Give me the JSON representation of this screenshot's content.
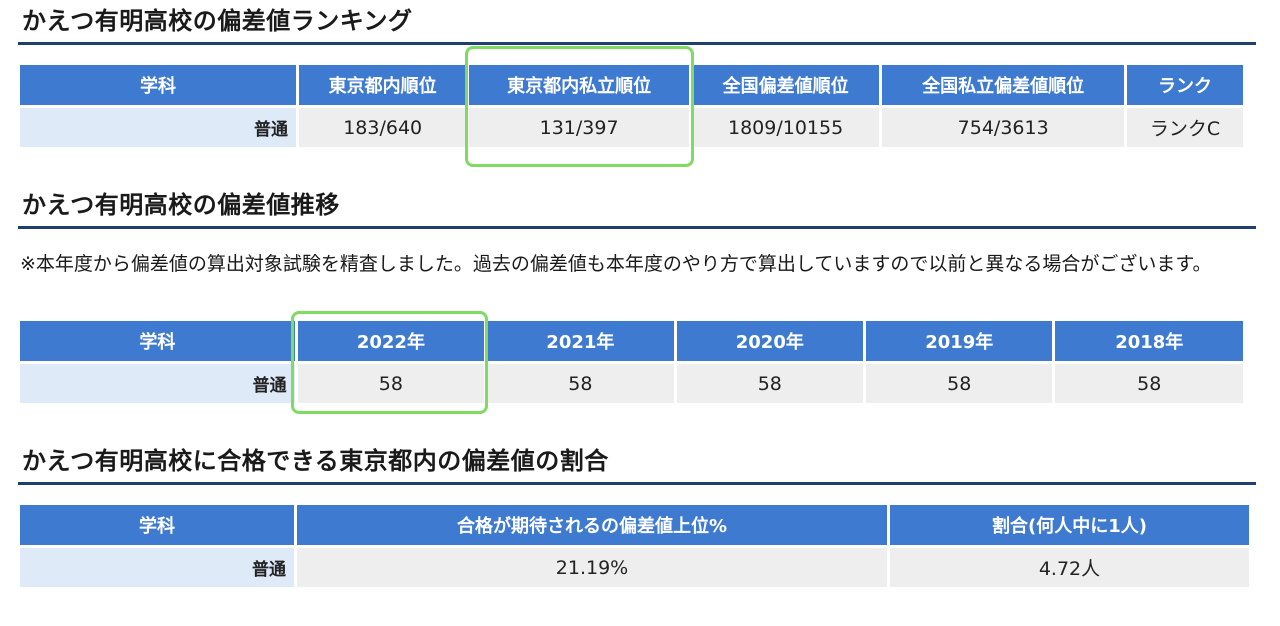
{
  "ranking": {
    "title": "かえつ有明高校の偏差値ランキング",
    "headers": [
      "学科",
      "東京都内順位",
      "東京都内私立順位",
      "全国偏差値順位",
      "全国私立偏差値順位",
      "ランク"
    ],
    "rows": [
      [
        "普通",
        "183/640",
        "131/397",
        "1809/10155",
        "754/3613",
        "ランクC"
      ]
    ]
  },
  "trend": {
    "title": "かえつ有明高校の偏差値推移",
    "note": "※本年度から偏差値の算出対象試験を精査しました。過去の偏差値も本年度のやり方で算出していますので以前と異なる場合がございます。",
    "headers": [
      "学科",
      "2022年",
      "2021年",
      "2020年",
      "2019年",
      "2018年"
    ],
    "rows": [
      [
        "普通",
        "58",
        "58",
        "58",
        "58",
        "58"
      ]
    ]
  },
  "ratio": {
    "title": "かえつ有明高校に合格できる東京都内の偏差値の割合",
    "headers": [
      "学科",
      "合格が期待されるの偏差値上位%",
      "割合(何人中に1人)"
    ],
    "rows": [
      [
        "普通",
        "21.19%",
        "4.72人"
      ]
    ]
  },
  "colors": {
    "header_bg": "#3e7ad0",
    "dept_bg": "#dfeaf8",
    "cell_bg": "#eeeeee",
    "rule": "#1f3f6f",
    "highlight": "#7fdb62"
  }
}
